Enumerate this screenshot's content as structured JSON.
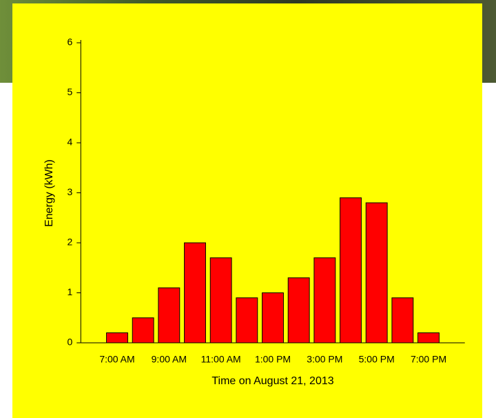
{
  "chart_data": {
    "type": "bar",
    "x_label": "Time on August 21, 2013",
    "y_label": "Energy (kWh)",
    "categories": [
      "7:00 AM",
      null,
      "9:00 AM",
      null,
      "11:00 AM",
      null,
      "1:00 PM",
      null,
      "3:00 PM",
      null,
      "5:00 PM",
      null,
      "7:00 PM"
    ],
    "values": [
      0.2,
      0.5,
      1.1,
      2.0,
      1.7,
      0.9,
      1.0,
      1.3,
      1.7,
      2.9,
      2.8,
      0.9,
      0.2
    ],
    "color": "#ff0000",
    "ylim": [
      0,
      6
    ],
    "yticks": [
      0,
      1,
      2,
      3,
      4,
      5,
      6
    ],
    "grid": false
  }
}
